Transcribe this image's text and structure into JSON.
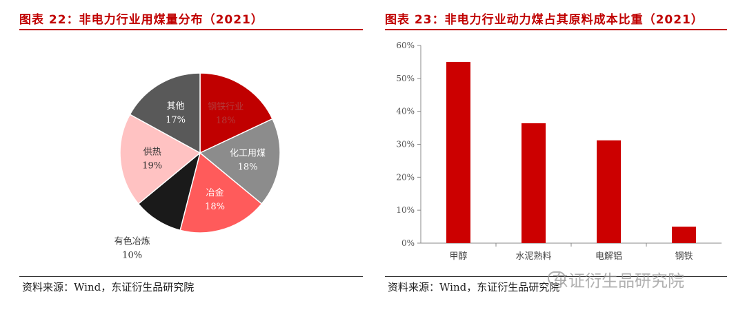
{
  "left_panel": {
    "title": "图表 22：非电力行业用煤量分布（2021）",
    "source": "资料来源：Wind，东证衍生品研究院"
  },
  "right_panel": {
    "title": "图表 23：非电力行业动力煤占其原料成本比重（2021）",
    "source": "资料来源：Wind，东证衍生品研究院"
  },
  "watermark": "东证衍生品研究院",
  "colors": {
    "title_red": "#c00000",
    "bar_red": "#cc0000",
    "pie": [
      "#c00000",
      "#8c8c8c",
      "#ff5b5b",
      "#1a1a1a",
      "#ffc2c2",
      "#595959"
    ]
  },
  "chart_data": [
    {
      "type": "pie",
      "title": "",
      "categories": [
        "钢铁行业",
        "化工用煤",
        "冶金",
        "有色冶炼",
        "供热",
        "其他"
      ],
      "values": [
        18,
        18,
        18,
        10,
        19,
        17
      ],
      "labels": [
        "18%",
        "18%",
        "18%",
        "10%",
        "19%",
        "17%"
      ],
      "start": "12 o'clock, clockwise",
      "legend": "none"
    },
    {
      "type": "bar",
      "title": "",
      "categories": [
        "甲醇",
        "水泥熟料",
        "电解铝",
        "钢铁"
      ],
      "values": [
        55,
        36.4,
        31.2,
        5
      ],
      "ylim": [
        0,
        60
      ],
      "yticks": [
        "0%",
        "10%",
        "20%",
        "30%",
        "40%",
        "50%",
        "60%"
      ],
      "grid": false
    }
  ]
}
